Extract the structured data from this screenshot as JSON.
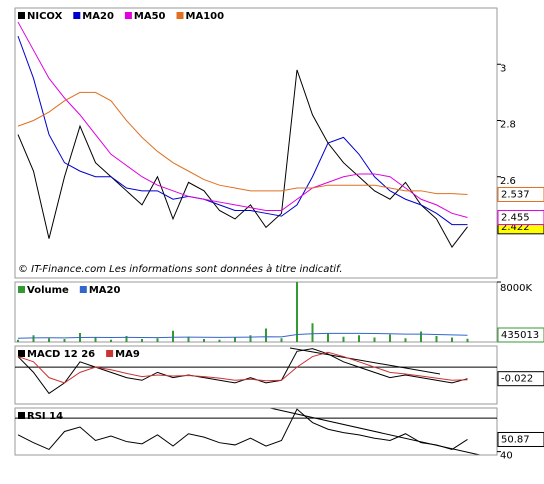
{
  "chart_data": [
    {
      "type": "line",
      "annotation": "© IT-Finance.com   Les informations sont données à titre indicatif.",
      "ylim": [
        2.24,
        3.2
      ],
      "yticks": [
        2.6,
        2.8,
        3
      ],
      "series": [
        {
          "name": "NICOX",
          "color": "#000000",
          "tag_color": "#ffff00",
          "values": [
            2.75,
            2.62,
            2.38,
            2.6,
            2.78,
            2.65,
            2.6,
            2.55,
            2.5,
            2.6,
            2.45,
            2.58,
            2.55,
            2.48,
            2.45,
            2.5,
            2.42,
            2.47,
            2.98,
            2.82,
            2.72,
            2.65,
            2.6,
            2.55,
            2.52,
            2.58,
            2.5,
            2.45,
            2.35,
            2.422
          ]
        },
        {
          "name": "MA20",
          "color": "#0000cc",
          "values": [
            3.1,
            2.95,
            2.75,
            2.65,
            2.62,
            2.6,
            2.6,
            2.56,
            2.55,
            2.55,
            2.52,
            2.53,
            2.52,
            2.5,
            2.48,
            2.48,
            2.47,
            2.46,
            2.5,
            2.6,
            2.72,
            2.74,
            2.68,
            2.6,
            2.55,
            2.52,
            2.5,
            2.47,
            2.43,
            2.43
          ]
        },
        {
          "name": "MA50",
          "color": "#e000e0",
          "tag_color": "#ffffff",
          "values": [
            3.15,
            3.05,
            2.95,
            2.88,
            2.82,
            2.75,
            2.68,
            2.64,
            2.6,
            2.57,
            2.55,
            2.53,
            2.52,
            2.51,
            2.5,
            2.49,
            2.48,
            2.48,
            2.52,
            2.56,
            2.58,
            2.6,
            2.61,
            2.61,
            2.6,
            2.56,
            2.52,
            2.5,
            2.47,
            2.455
          ]
        },
        {
          "name": "MA100",
          "color": "#e07020",
          "tag_color": "#ffffff",
          "values": [
            2.78,
            2.8,
            2.83,
            2.87,
            2.9,
            2.9,
            2.87,
            2.8,
            2.74,
            2.69,
            2.65,
            2.62,
            2.59,
            2.57,
            2.56,
            2.55,
            2.55,
            2.55,
            2.56,
            2.56,
            2.57,
            2.57,
            2.57,
            2.57,
            2.56,
            2.55,
            2.55,
            2.54,
            2.54,
            2.537
          ]
        }
      ]
    },
    {
      "type": "bar",
      "ylim": [
        0,
        8000000
      ],
      "yticks": [
        {
          "value": 8000000,
          "label": "8000K"
        }
      ],
      "series": [
        {
          "name": "Volume",
          "color": "#339933",
          "type": "bar",
          "tag_color": "#ffffff",
          "values": [
            300000,
            900000,
            500000,
            400000,
            1200000,
            600000,
            300000,
            800000,
            400000,
            500000,
            1500000,
            700000,
            400000,
            300000,
            600000,
            900000,
            1800000,
            500000,
            8000000,
            2500000,
            1200000,
            700000,
            900000,
            600000,
            1000000,
            500000,
            1400000,
            800000,
            600000,
            435013
          ]
        },
        {
          "name": "MA20",
          "color": "#3366cc",
          "type": "line",
          "values": [
            500000,
            550000,
            560000,
            550000,
            600000,
            620000,
            600000,
            610000,
            600000,
            590000,
            640000,
            650000,
            640000,
            620000,
            630000,
            650000,
            700000,
            690000,
            1000000,
            1100000,
            1150000,
            1150000,
            1150000,
            1130000,
            1100000,
            1050000,
            1050000,
            1000000,
            950000,
            900000
          ]
        }
      ]
    },
    {
      "type": "line",
      "ylim": [
        -0.07,
        0.04
      ],
      "levels": [
        0
      ],
      "series": [
        {
          "name": "MACD 12 26",
          "color": "#000000",
          "tag_color": "#ffffff",
          "values": [
            0.02,
            -0.01,
            -0.05,
            -0.03,
            0.01,
            0.0,
            -0.01,
            -0.02,
            -0.025,
            -0.01,
            -0.02,
            -0.015,
            -0.02,
            -0.025,
            -0.03,
            -0.02,
            -0.03,
            -0.025,
            0.03,
            0.035,
            0.025,
            0.01,
            0.0,
            -0.01,
            -0.02,
            -0.015,
            -0.02,
            -0.025,
            -0.03,
            -0.022
          ]
        },
        {
          "name": "MA9",
          "color": "#cc3333",
          "values": [
            0.02,
            0.01,
            -0.02,
            -0.03,
            -0.01,
            0.0,
            -0.005,
            -0.012,
            -0.018,
            -0.015,
            -0.017,
            -0.016,
            -0.018,
            -0.021,
            -0.025,
            -0.023,
            -0.026,
            -0.025,
            0.0,
            0.02,
            0.028,
            0.02,
            0.01,
            0.0,
            -0.01,
            -0.013,
            -0.017,
            -0.021,
            -0.025,
            -0.024
          ]
        }
      ]
    },
    {
      "type": "line",
      "ylim": [
        37,
        79
      ],
      "yticks": [
        40
      ],
      "levels": [
        70
      ],
      "series": [
        {
          "name": "RSI 14",
          "color": "#000000",
          "tag_color": "#ffffff",
          "values": [
            55,
            48,
            42,
            58,
            62,
            50,
            54,
            49,
            47,
            55,
            45,
            56,
            53,
            48,
            46,
            52,
            45,
            50,
            78,
            66,
            60,
            57,
            55,
            52,
            50,
            56,
            48,
            46,
            42,
            50.87
          ]
        }
      ]
    }
  ]
}
